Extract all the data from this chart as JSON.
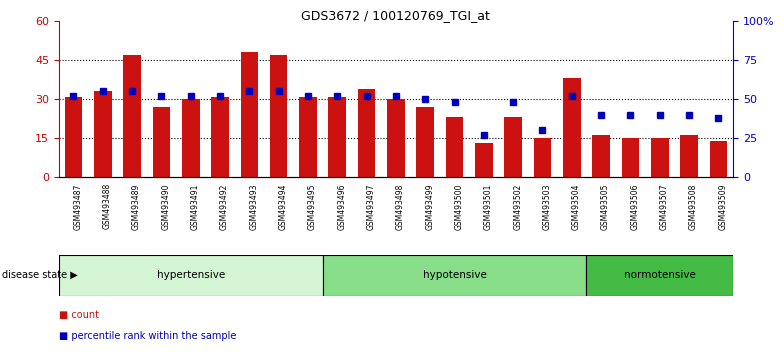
{
  "title": "GDS3672 / 100120769_TGI_at",
  "samples": [
    "GSM493487",
    "GSM493488",
    "GSM493489",
    "GSM493490",
    "GSM493491",
    "GSM493492",
    "GSM493493",
    "GSM493494",
    "GSM493495",
    "GSM493496",
    "GSM493497",
    "GSM493498",
    "GSM493499",
    "GSM493500",
    "GSM493501",
    "GSM493502",
    "GSM493503",
    "GSM493504",
    "GSM493505",
    "GSM493506",
    "GSM493507",
    "GSM493508",
    "GSM493509"
  ],
  "counts": [
    31,
    33,
    47,
    27,
    30,
    31,
    48,
    47,
    31,
    31,
    34,
    30,
    27,
    23,
    13,
    23,
    15,
    38,
    16,
    15,
    15,
    16,
    14
  ],
  "percentile_ranks": [
    52,
    55,
    55,
    52,
    52,
    52,
    55,
    55,
    52,
    52,
    52,
    52,
    50,
    48,
    27,
    48,
    30,
    52,
    40,
    40,
    40,
    40,
    38
  ],
  "groups": [
    {
      "name": "hypertensive",
      "start": 0,
      "end": 8,
      "color": "#d4f5d4"
    },
    {
      "name": "hypotensive",
      "start": 9,
      "end": 17,
      "color": "#88dd88"
    },
    {
      "name": "normotensive",
      "start": 18,
      "end": 22,
      "color": "#44bb44"
    }
  ],
  "ylim_left": [
    0,
    60
  ],
  "ylim_right": [
    0,
    100
  ],
  "yticks_left": [
    0,
    15,
    30,
    45,
    60
  ],
  "yticks_right": [
    0,
    25,
    50,
    75,
    100
  ],
  "ytick_labels_right": [
    "0",
    "25",
    "50",
    "75",
    "100%"
  ],
  "bar_color": "#cc1111",
  "dot_color": "#0000bb",
  "bg_color": "#ffffff",
  "tick_bg_color": "#d0d0d0",
  "left_axis_color": "#cc0000",
  "right_axis_color": "#0000cc",
  "grid_yticks": [
    15,
    30,
    45
  ]
}
